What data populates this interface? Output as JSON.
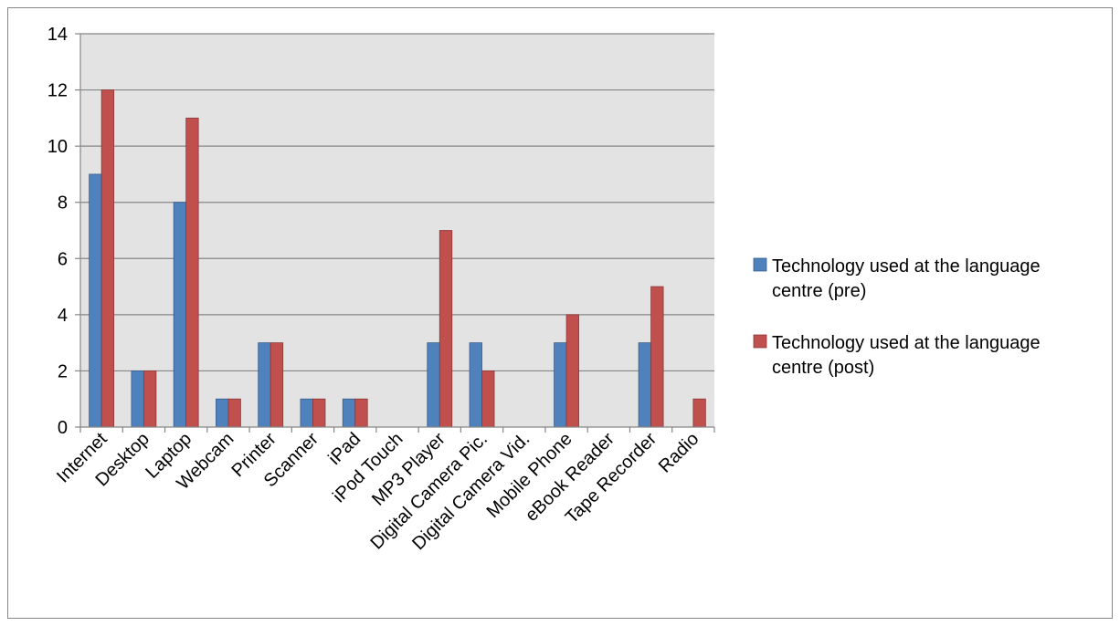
{
  "chart_data": {
    "type": "bar",
    "title": "",
    "xlabel": "",
    "ylabel": "",
    "ylim": [
      0,
      14
    ],
    "yticks": [
      0,
      2,
      4,
      6,
      8,
      10,
      12,
      14
    ],
    "grid": true,
    "legend_position": "right",
    "categories": [
      "Internet",
      "Desktop",
      "Laptop",
      "Webcam",
      "Printer",
      "Scanner",
      "iPad",
      "iPod Touch",
      "MP3 Player",
      "Digital Camera Pic.",
      "Digital Camera Vid.",
      "Mobile Phone",
      "eBook Reader",
      "Tape Recorder",
      "Radio"
    ],
    "series": [
      {
        "name": "Technology used at the language centre (pre)",
        "legend_lines": [
          "Technology used at the language",
          "centre (pre)"
        ],
        "color": "#4F81BD",
        "stroke": "#385D8A",
        "values": [
          9,
          2,
          8,
          1,
          3,
          1,
          1,
          0,
          3,
          3,
          0,
          3,
          0,
          3,
          0
        ]
      },
      {
        "name": "Technology used at the language centre (post)",
        "legend_lines": [
          "Technology used at the language",
          "centre (post)"
        ],
        "color": "#C0504D",
        "stroke": "#8C3836",
        "values": [
          12,
          2,
          11,
          1,
          3,
          1,
          1,
          0,
          7,
          2,
          0,
          4,
          0,
          5,
          1
        ]
      }
    ],
    "colors": {
      "plot_background": "#E3E3E3",
      "gridline": "#868686",
      "frame": "#868686"
    }
  }
}
